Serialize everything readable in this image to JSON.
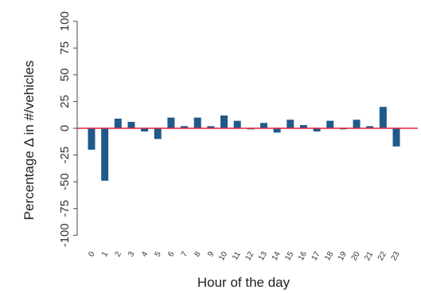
{
  "chart_data": {
    "type": "bar",
    "title": "",
    "xlabel": "Hour of the day",
    "ylabel": "Percentage Δ in #/vehicles",
    "ylim": [
      -105,
      105
    ],
    "yticks": [
      "-100",
      "-75",
      "-50",
      "-25",
      "0",
      "25",
      "50",
      "75",
      "100"
    ],
    "categories": [
      "0",
      "1",
      "2",
      "3",
      "4",
      "5",
      "6",
      "7",
      "8",
      "9",
      "10",
      "11",
      "12",
      "13",
      "14",
      "15",
      "16",
      "17",
      "18",
      "19",
      "20",
      "21",
      "22",
      "23"
    ],
    "values": [
      -20,
      -49,
      9,
      6,
      -3,
      -10,
      10,
      2,
      10,
      2,
      12,
      7,
      -1,
      5,
      -4,
      8,
      3,
      -3,
      7,
      -1,
      8,
      2,
      20,
      -17
    ],
    "bar_color": "#1f5a8a",
    "zero_line_color": "#e0223a",
    "grid": false,
    "legend": false
  }
}
